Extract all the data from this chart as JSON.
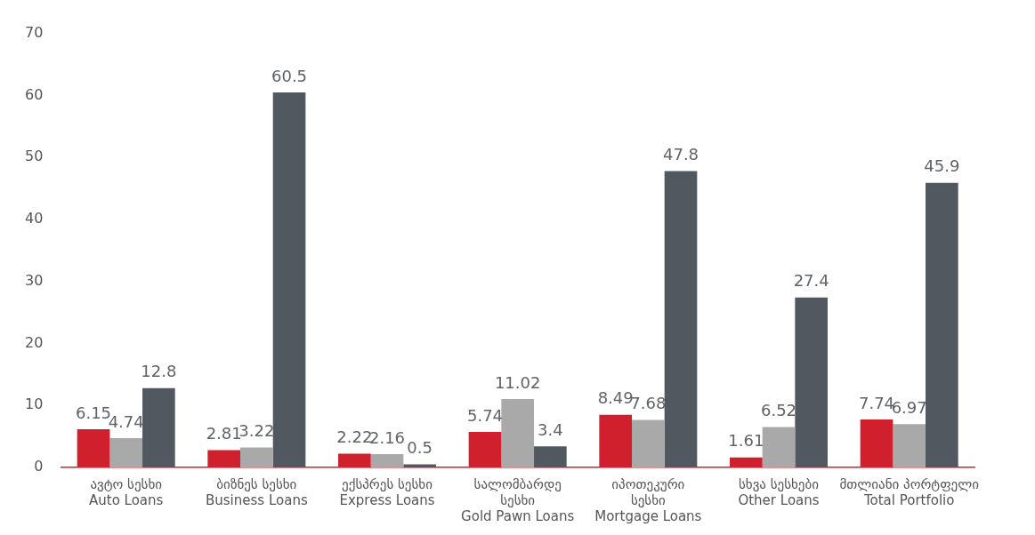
{
  "chart_data": {
    "type": "bar",
    "categories": [
      "ავტო სესხი\nAuto Loans",
      "ბიზნეს სესხი\nBusiness Loans",
      "ექსპრეს სესხი\nExpress Loans",
      "სალომბარდე\nსესხი\nGold Pawn Loans",
      "იპოთეკური\nსესხი\nMortgage Loans",
      "სხვა სესხები\nOther Loans",
      "მთლიანი პორტფელი\nTotal Portfolio"
    ],
    "series": [
      {
        "color": "#d0202e",
        "values": [
          6.15,
          2.81,
          2.22,
          5.74,
          8.49,
          1.61,
          7.74
        ]
      },
      {
        "color": "#a9a9a9",
        "values": [
          4.74,
          3.22,
          2.16,
          11.02,
          7.68,
          6.52,
          6.97
        ]
      },
      {
        "color": "#525860",
        "values": [
          12.8,
          60.5,
          0.5,
          3.4,
          47.8,
          27.4,
          45.9
        ]
      }
    ],
    "ylim": [
      0,
      70
    ],
    "yticks": [
      0,
      10,
      20,
      30,
      40,
      50,
      60,
      70
    ],
    "data_labels": true
  }
}
